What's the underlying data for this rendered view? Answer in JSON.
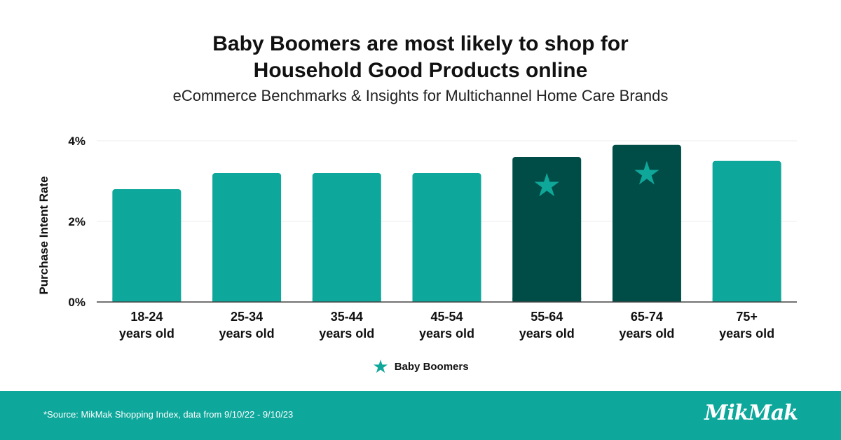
{
  "header": {
    "title_line1": "Baby Boomers are most likely to shop for",
    "title_line2": "Household Good Products online",
    "subtitle": "eCommerce Benchmarks & Insights for Multichannel Home Care Brands"
  },
  "chart_data": {
    "type": "bar",
    "title": "Baby Boomers are most likely to shop for Household Good Products online",
    "subtitle": "eCommerce Benchmarks & Insights for Multichannel Home Care Brands",
    "ylabel": "Purchase Intent Rate",
    "xlabel": "",
    "ylim": [
      0,
      4
    ],
    "yticks": [
      0,
      2,
      4
    ],
    "ytick_labels": [
      "0%",
      "2%",
      "4%"
    ],
    "categories": [
      [
        "18-24",
        "years old"
      ],
      [
        "25-34",
        "years old"
      ],
      [
        "35-44",
        "years old"
      ],
      [
        "45-54",
        "years old"
      ],
      [
        "55-64",
        "years old"
      ],
      [
        "65-74",
        "years old"
      ],
      [
        "75+",
        "years old"
      ]
    ],
    "values": [
      2.8,
      3.2,
      3.2,
      3.2,
      3.6,
      3.9,
      3.5
    ],
    "unit": "%",
    "highlighted": [
      false,
      false,
      false,
      false,
      true,
      true,
      false
    ],
    "grid": true,
    "legend": {
      "label": "Baby Boomers",
      "position": "bottom-center"
    },
    "colors": {
      "base": "#0ea79b",
      "highlight": "#004d47",
      "star": "#0fa79a"
    }
  },
  "legend": {
    "label": "Baby Boomers",
    "icon": "star-icon"
  },
  "footer": {
    "source": "*Source: MikMak Shopping Index, data from 9/10/22 - 9/10/23",
    "logo": "MikMak"
  }
}
